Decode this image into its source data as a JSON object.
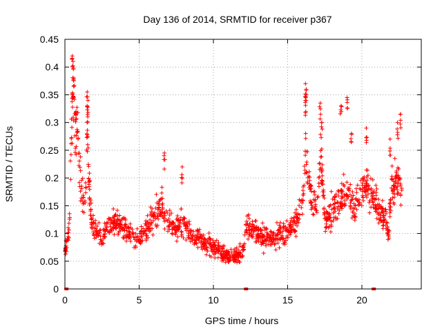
{
  "chart_data": {
    "type": "scatter",
    "title": "Day 136 of 2014, SRMTID for receiver p367",
    "xlabel": "GPS time / hours",
    "ylabel": "SRMTID / TECUs",
    "xlim": [
      0,
      24
    ],
    "ylim": [
      0,
      0.45
    ],
    "x_ticks": [
      0,
      5,
      10,
      15,
      20
    ],
    "x_tick_labels": [
      "0",
      "5",
      "10",
      "15",
      "20"
    ],
    "y_ticks": [
      0,
      0.05,
      0.1,
      0.15,
      0.2,
      0.25,
      0.3,
      0.35,
      0.4,
      0.45
    ],
    "y_tick_labels": [
      "0",
      "0.05",
      "0.1",
      "0.15",
      "0.2",
      "0.25",
      "0.3",
      "0.35",
      "0.4",
      "0.45"
    ],
    "grid": true,
    "marker": "+",
    "color": "#ff0000",
    "zero_markers_x": [
      0.1,
      12.2,
      20.8
    ],
    "series": [
      {
        "name": "SRMTID",
        "trend": [
          [
            0.0,
            0.06
          ],
          [
            0.15,
            0.09
          ],
          [
            0.3,
            0.12
          ],
          [
            0.45,
            0.3
          ],
          [
            0.55,
            0.38
          ],
          [
            0.7,
            0.26
          ],
          [
            0.85,
            0.3
          ],
          [
            1.0,
            0.2
          ],
          [
            1.2,
            0.16
          ],
          [
            1.4,
            0.17
          ],
          [
            1.5,
            0.3
          ],
          [
            1.6,
            0.2
          ],
          [
            1.8,
            0.12
          ],
          [
            2.0,
            0.11
          ],
          [
            2.5,
            0.09
          ],
          [
            3.0,
            0.12
          ],
          [
            3.5,
            0.12
          ],
          [
            4.0,
            0.11
          ],
          [
            4.5,
            0.1
          ],
          [
            5.0,
            0.09
          ],
          [
            5.5,
            0.11
          ],
          [
            6.0,
            0.13
          ],
          [
            6.5,
            0.14
          ],
          [
            7.0,
            0.12
          ],
          [
            7.5,
            0.11
          ],
          [
            8.0,
            0.12
          ],
          [
            8.5,
            0.1
          ],
          [
            9.0,
            0.09
          ],
          [
            9.5,
            0.08
          ],
          [
            10.0,
            0.075
          ],
          [
            10.5,
            0.065
          ],
          [
            11.0,
            0.06
          ],
          [
            11.5,
            0.06
          ],
          [
            12.0,
            0.07
          ],
          [
            12.3,
            0.12
          ],
          [
            12.5,
            0.11
          ],
          [
            13.0,
            0.1
          ],
          [
            13.5,
            0.09
          ],
          [
            14.0,
            0.095
          ],
          [
            14.5,
            0.1
          ],
          [
            15.0,
            0.1
          ],
          [
            15.5,
            0.12
          ],
          [
            16.0,
            0.15
          ],
          [
            16.2,
            0.24
          ],
          [
            16.5,
            0.17
          ],
          [
            17.0,
            0.14
          ],
          [
            17.2,
            0.25
          ],
          [
            17.5,
            0.13
          ],
          [
            18.0,
            0.14
          ],
          [
            18.5,
            0.16
          ],
          [
            19.0,
            0.17
          ],
          [
            19.5,
            0.15
          ],
          [
            20.0,
            0.17
          ],
          [
            20.3,
            0.2
          ],
          [
            20.6,
            0.17
          ],
          [
            21.0,
            0.15
          ],
          [
            21.5,
            0.13
          ],
          [
            21.8,
            0.1
          ],
          [
            22.0,
            0.18
          ],
          [
            22.3,
            0.2
          ],
          [
            22.7,
            0.17
          ]
        ],
        "peaks": [
          [
            0.5,
            0.42
          ],
          [
            0.55,
            0.41
          ],
          [
            0.6,
            0.38
          ],
          [
            0.5,
            0.35
          ],
          [
            0.75,
            0.32
          ],
          [
            1.5,
            0.355
          ],
          [
            1.55,
            0.34
          ],
          [
            1.5,
            0.3
          ],
          [
            6.7,
            0.245
          ],
          [
            7.9,
            0.22
          ],
          [
            16.2,
            0.37
          ],
          [
            16.25,
            0.36
          ],
          [
            16.2,
            0.34
          ],
          [
            17.2,
            0.335
          ],
          [
            17.3,
            0.3
          ],
          [
            18.6,
            0.33
          ],
          [
            19.0,
            0.345
          ],
          [
            19.3,
            0.28
          ],
          [
            20.3,
            0.29
          ],
          [
            22.6,
            0.315
          ],
          [
            22.4,
            0.3
          ],
          [
            21.9,
            0.27
          ]
        ]
      }
    ]
  }
}
